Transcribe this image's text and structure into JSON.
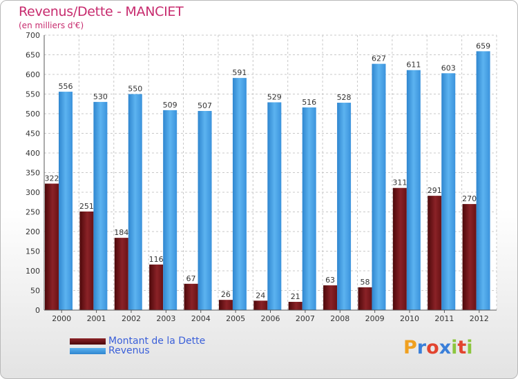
{
  "header": {
    "title": "Revenus/Dette - MANCIET",
    "subtitle": "(en milliers d'€)"
  },
  "legend": [
    {
      "label": "Montant de la Dette",
      "color": "#6d0f12"
    },
    {
      "label": "Revenus",
      "color": "#4aa3e8"
    }
  ],
  "logo": {
    "letters": [
      "P",
      "r",
      "o",
      "x",
      "i",
      "t",
      "i"
    ],
    "colors": [
      "#f0a020",
      "#3a7fd9",
      "#e2442f",
      "#3a7fd9",
      "#8cc63e",
      "#e2442f",
      "#8cc63e"
    ]
  },
  "chart_data": {
    "type": "bar",
    "categories": [
      "2000",
      "2001",
      "2002",
      "2003",
      "2004",
      "2005",
      "2006",
      "2007",
      "2008",
      "2009",
      "2010",
      "2011",
      "2012"
    ],
    "series": [
      {
        "name": "Montant de la Dette",
        "values": [
          322,
          251,
          184,
          116,
          67,
          26,
          24,
          21,
          63,
          58,
          311,
          291,
          270
        ],
        "color": "#6d0f12"
      },
      {
        "name": "Revenus",
        "values": [
          556,
          530,
          550,
          509,
          507,
          591,
          529,
          516,
          528,
          627,
          611,
          603,
          659
        ],
        "color": "#4aa3e8"
      }
    ],
    "ylim": [
      0,
      700
    ],
    "yticks": [
      0,
      50,
      100,
      150,
      200,
      250,
      300,
      350,
      400,
      450,
      500,
      550,
      600,
      650,
      700
    ],
    "grid": true
  }
}
